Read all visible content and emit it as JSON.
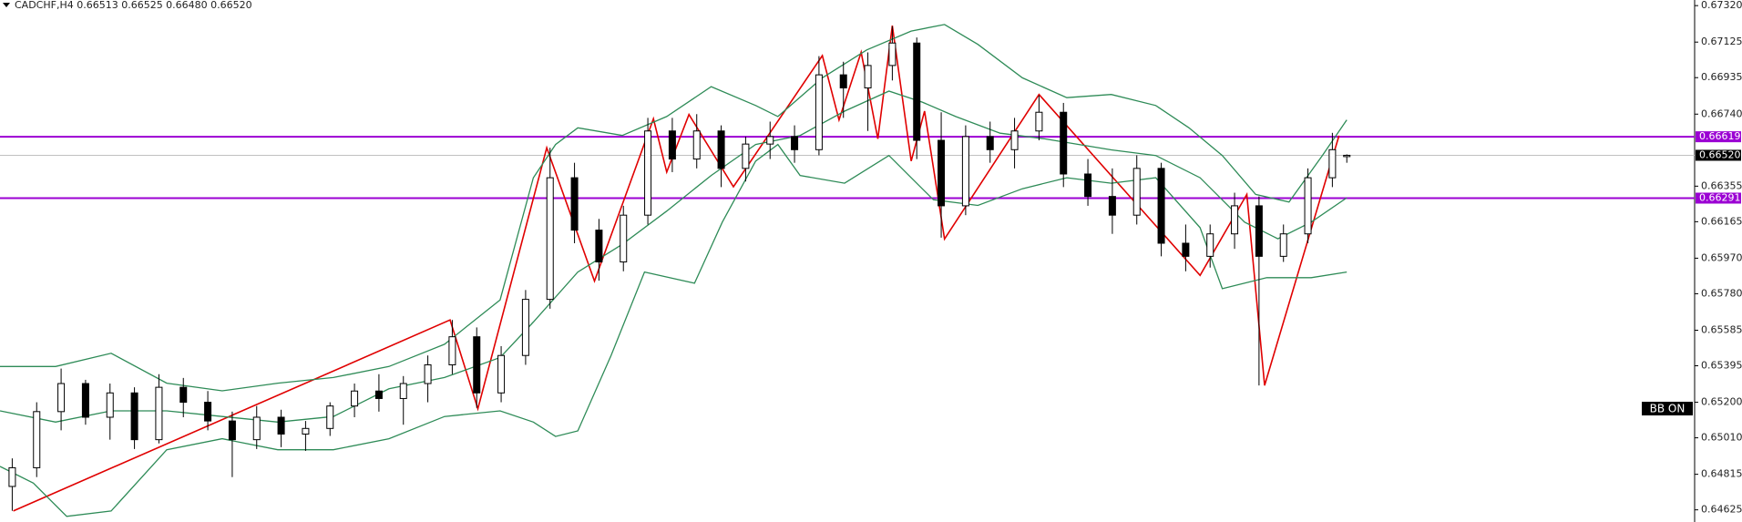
{
  "chart_data": {
    "type": "candlestick",
    "title": "CADCHF,H4  0.66513 0.66525 0.66480 0.66520",
    "badge": "BB ON",
    "xlim": [
      0,
      1525
    ],
    "ylim": [
      0.6456,
      0.6735
    ],
    "yticks": [
      {
        "value": 0.6732,
        "label": "0.67320"
      },
      0.67125,
      0.66935,
      {
        "value": 0.6674,
        "label": "0.66740"
      },
      0.66355,
      0.66165,
      {
        "value": 0.6597,
        "label": "0.65970"
      },
      {
        "value": 0.6578,
        "label": "0.65780"
      },
      0.65585,
      0.65395,
      {
        "value": 0.652,
        "label": "0.65200"
      },
      {
        "value": 0.6501,
        "label": "0.65010"
      },
      0.64815,
      0.64625
    ],
    "candles": {
      "up_color": "#ffffff",
      "down_color": "#000000",
      "x": [
        11,
        33,
        55,
        77,
        99,
        121,
        143,
        165,
        187,
        209,
        231,
        253,
        275,
        297,
        319,
        341,
        363,
        385,
        407,
        429,
        451,
        473,
        495,
        517,
        539,
        561,
        583,
        605,
        627,
        649,
        671,
        693,
        715,
        737,
        759,
        781,
        803,
        825,
        847,
        869,
        891,
        913,
        935,
        957,
        979,
        1001,
        1023,
        1045,
        1067,
        1089,
        1111,
        1133,
        1155,
        1177,
        1199,
        1212
      ],
      "open": [
        0.6475,
        0.6485,
        0.6515,
        0.653,
        0.6512,
        0.6525,
        0.65,
        0.6528,
        0.652,
        0.651,
        0.65,
        0.6512,
        0.6503,
        0.6506,
        0.6518,
        0.6526,
        0.6522,
        0.653,
        0.654,
        0.6555,
        0.6525,
        0.6545,
        0.6575,
        0.664,
        0.6612,
        0.6595,
        0.662,
        0.6665,
        0.665,
        0.6665,
        0.6645,
        0.6658,
        0.6662,
        0.6655,
        0.6695,
        0.6688,
        0.67,
        0.6712,
        0.666,
        0.6625,
        0.6662,
        0.6655,
        0.6665,
        0.6675,
        0.6642,
        0.663,
        0.662,
        0.6645,
        0.6605,
        0.6598,
        0.661,
        0.6625,
        0.6598,
        0.661,
        0.664,
        0.66513
      ],
      "high": [
        0.649,
        0.652,
        0.6538,
        0.6532,
        0.653,
        0.6528,
        0.6535,
        0.6533,
        0.6526,
        0.6515,
        0.6518,
        0.6516,
        0.651,
        0.652,
        0.653,
        0.6535,
        0.6534,
        0.6545,
        0.6564,
        0.656,
        0.655,
        0.658,
        0.6656,
        0.6648,
        0.6618,
        0.6625,
        0.6672,
        0.6672,
        0.6674,
        0.6668,
        0.6662,
        0.667,
        0.6668,
        0.6705,
        0.6702,
        0.6707,
        0.6721,
        0.6715,
        0.6675,
        0.6668,
        0.667,
        0.6672,
        0.6684,
        0.668,
        0.665,
        0.6645,
        0.6652,
        0.6648,
        0.6615,
        0.6615,
        0.6632,
        0.663,
        0.6615,
        0.6645,
        0.6664,
        0.66525
      ],
      "low": [
        0.6462,
        0.648,
        0.6505,
        0.6508,
        0.65,
        0.6495,
        0.6498,
        0.6512,
        0.6505,
        0.648,
        0.6495,
        0.6496,
        0.6494,
        0.6502,
        0.6512,
        0.6515,
        0.6508,
        0.652,
        0.6535,
        0.6517,
        0.652,
        0.654,
        0.657,
        0.6605,
        0.6585,
        0.659,
        0.6615,
        0.6643,
        0.6645,
        0.6635,
        0.6638,
        0.665,
        0.6648,
        0.6652,
        0.6672,
        0.6665,
        0.6692,
        0.665,
        0.6608,
        0.662,
        0.6648,
        0.6645,
        0.666,
        0.6635,
        0.6625,
        0.661,
        0.6615,
        0.6598,
        0.659,
        0.6592,
        0.6602,
        0.6529,
        0.6595,
        0.6605,
        0.6635,
        0.6648
      ],
      "close": [
        0.6485,
        0.6515,
        0.653,
        0.6512,
        0.6525,
        0.65,
        0.6528,
        0.652,
        0.651,
        0.65,
        0.6512,
        0.6503,
        0.6506,
        0.6518,
        0.6526,
        0.6522,
        0.653,
        0.654,
        0.6555,
        0.6525,
        0.6545,
        0.6575,
        0.664,
        0.6612,
        0.6595,
        0.662,
        0.6665,
        0.665,
        0.6665,
        0.6645,
        0.6658,
        0.6662,
        0.6655,
        0.6695,
        0.6688,
        0.67,
        0.6712,
        0.666,
        0.6625,
        0.6662,
        0.6655,
        0.6665,
        0.6675,
        0.6642,
        0.663,
        0.662,
        0.6645,
        0.6605,
        0.6598,
        0.661,
        0.6625,
        0.6598,
        0.661,
        0.664,
        0.6655,
        0.6652
      ]
    },
    "series": [
      {
        "color": "#e00000",
        "x": [
          12,
          405,
          430,
          492,
          535,
          588,
          600,
          620,
          660,
          740,
          755,
          775,
          790,
          803,
          820,
          832,
          850,
          935,
          1080,
          1122,
          1138,
          1205
        ],
        "values": [
          0.64619,
          0.6564,
          0.65165,
          0.6656,
          0.65848,
          0.66715,
          0.6643,
          0.66738,
          0.66352,
          0.67053,
          0.66709,
          0.67071,
          0.66608,
          0.67213,
          0.66489,
          0.66756,
          0.66073,
          0.66845,
          0.65878,
          0.66311,
          0.6529,
          0.66625
        ]
      },
      {
        "color": "#2e8b57",
        "x": [
          0,
          50,
          100,
          150,
          200,
          250,
          300,
          350,
          400,
          450,
          480,
          500,
          520,
          560,
          600,
          640,
          680,
          700,
          740,
          780,
          820,
          850,
          880,
          920,
          960,
          1000,
          1040,
          1070,
          1100,
          1130,
          1160,
          1190,
          1212
        ],
        "values": [
          0.65391,
          0.65391,
          0.65462,
          0.65302,
          0.65261,
          0.65302,
          0.65332,
          0.65391,
          0.6551,
          0.65747,
          0.664,
          0.66578,
          0.66667,
          0.66626,
          0.66727,
          0.66887,
          0.66786,
          0.66727,
          0.66934,
          0.67083,
          0.67184,
          0.67219,
          0.67113,
          0.66934,
          0.66828,
          0.66845,
          0.66786,
          0.66667,
          0.66519,
          0.66311,
          0.6627,
          0.66519,
          0.66709
        ]
      },
      {
        "color": "#2e8b57",
        "x": [
          0,
          50,
          100,
          150,
          200,
          250,
          300,
          350,
          400,
          450,
          480,
          520,
          560,
          600,
          640,
          680,
          720,
          760,
          800,
          830,
          860,
          900,
          940,
          1000,
          1040,
          1080,
          1120,
          1150,
          1180,
          1212
        ],
        "values": [
          0.65154,
          0.65094,
          0.65154,
          0.65154,
          0.65124,
          0.65094,
          0.65124,
          0.65272,
          0.65332,
          0.65439,
          0.65629,
          0.65896,
          0.66044,
          0.66222,
          0.66412,
          0.66578,
          0.66626,
          0.66756,
          0.66863,
          0.66804,
          0.66727,
          0.66638,
          0.66608,
          0.66549,
          0.66519,
          0.664,
          0.66163,
          0.66074,
          0.66163,
          0.66293
        ]
      },
      {
        "color": "#2e8b57",
        "x": [
          0,
          30,
          60,
          100,
          150,
          200,
          250,
          300,
          350,
          400,
          450,
          480,
          500,
          520,
          550,
          580,
          625,
          650,
          680,
          700,
          720,
          760,
          800,
          820,
          840,
          880,
          920,
          960,
          1000,
          1040,
          1080,
          1100,
          1140,
          1180,
          1212
        ],
        "values": [
          0.64857,
          0.64768,
          0.6459,
          0.64619,
          0.64946,
          0.65005,
          0.64946,
          0.64946,
          0.65005,
          0.65124,
          0.65154,
          0.65094,
          0.65017,
          0.65047,
          0.65451,
          0.65896,
          0.65836,
          0.66163,
          0.66489,
          0.66578,
          0.66412,
          0.66371,
          0.66519,
          0.664,
          0.66282,
          0.66252,
          0.66341,
          0.664,
          0.66371,
          0.664,
          0.66133,
          0.65807,
          0.65866,
          0.65866,
          0.65896
        ]
      }
    ],
    "levels": [
      {
        "value": 0.66619,
        "color": "#9b00d3"
      },
      {
        "value": 0.66291,
        "color": "#9b00d3"
      }
    ],
    "current_price": {
      "value": 0.6652,
      "label": "0.66520",
      "color": "#000000"
    }
  }
}
